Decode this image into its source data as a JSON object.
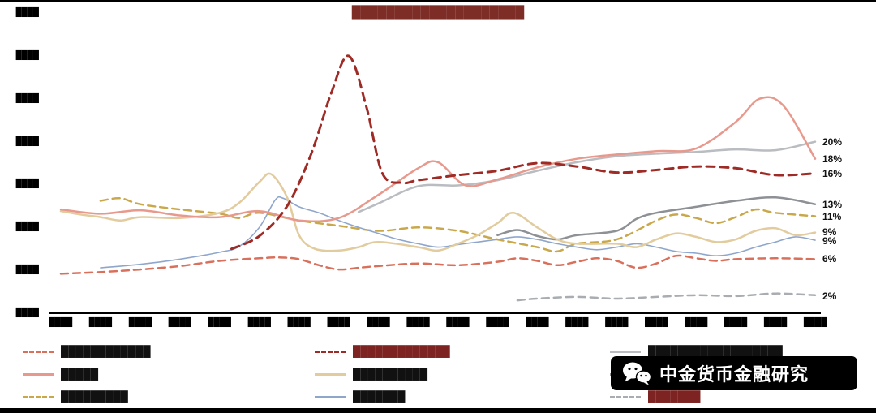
{
  "title": {
    "text": "████████████████████"
  },
  "y_axis": {
    "ticks": [
      "████",
      "████",
      "████",
      "████",
      "████",
      "████",
      "████",
      "████"
    ]
  },
  "x_axis": {
    "labels": [
      "████",
      "████",
      "████",
      "████",
      "████",
      "████",
      "████",
      "████",
      "████",
      "████",
      "████",
      "████",
      "████",
      "████",
      "████",
      "████",
      "████",
      "████",
      "████",
      "████"
    ]
  },
  "right_labels": [
    {
      "text": "20%",
      "value": 20.0
    },
    {
      "text": "18%",
      "value": 18.0
    },
    {
      "text": "16%",
      "value": 16.3
    },
    {
      "text": "13%",
      "value": 12.7
    },
    {
      "text": "11%",
      "value": 11.3
    },
    {
      "text": "9%",
      "value": 9.5
    },
    {
      "text": "9%",
      "value": 8.4
    },
    {
      "text": "6%",
      "value": 6.3
    },
    {
      "text": "2%",
      "value": 2.0
    }
  ],
  "chart_data": {
    "type": "line",
    "x_count": 20,
    "ylim": [
      0,
      35
    ],
    "grid": false,
    "legend_position": "bottom",
    "series": [
      {
        "name": "lightgray-solid",
        "color": "#b9bcc0",
        "dash": false,
        "width": 2.5,
        "points": [
          [
            7.5,
            11.8
          ],
          [
            8,
            12.8
          ],
          [
            9,
            14.8
          ],
          [
            10,
            14.9
          ],
          [
            11,
            15.5
          ],
          [
            12,
            16.6
          ],
          [
            13,
            17.6
          ],
          [
            14,
            18.3
          ],
          [
            15,
            18.6
          ],
          [
            16,
            18.8
          ],
          [
            17,
            19.1
          ],
          [
            18,
            19.0
          ],
          [
            19,
            20.0
          ]
        ]
      },
      {
        "name": "gray-solid",
        "color": "#8d9094",
        "dash": false,
        "width": 2.5,
        "points": [
          [
            11,
            9.1
          ],
          [
            11.5,
            9.7
          ],
          [
            12,
            9.0
          ],
          [
            12.5,
            8.6
          ],
          [
            13,
            9.1
          ],
          [
            14,
            9.6
          ],
          [
            14.5,
            11.0
          ],
          [
            15,
            11.7
          ],
          [
            16,
            12.4
          ],
          [
            17,
            13.1
          ],
          [
            18,
            13.5
          ],
          [
            19,
            12.7
          ]
        ]
      },
      {
        "name": "gray-dashed",
        "color": "#a9adb2",
        "dash": true,
        "width": 2.5,
        "points": [
          [
            11.5,
            1.5
          ],
          [
            12,
            1.7
          ],
          [
            13,
            1.9
          ],
          [
            14,
            1.7
          ],
          [
            15,
            1.9
          ],
          [
            16,
            2.1
          ],
          [
            17,
            2.0
          ],
          [
            18,
            2.3
          ],
          [
            19,
            2.1
          ]
        ]
      },
      {
        "name": "gold-dashed",
        "color": "#c9a84c",
        "dash": true,
        "width": 2.5,
        "points": [
          [
            1,
            13.1
          ],
          [
            1.5,
            13.4
          ],
          [
            2,
            12.7
          ],
          [
            3,
            12.1
          ],
          [
            4,
            11.6
          ],
          [
            4.5,
            11.1
          ],
          [
            5,
            11.7
          ],
          [
            6,
            10.8
          ],
          [
            7,
            10.2
          ],
          [
            8,
            9.6
          ],
          [
            9,
            10.0
          ],
          [
            10,
            9.6
          ],
          [
            11,
            8.6
          ],
          [
            12,
            7.7
          ],
          [
            12.5,
            7.2
          ],
          [
            13,
            8.1
          ],
          [
            14,
            8.6
          ],
          [
            15,
            10.8
          ],
          [
            15.5,
            11.5
          ],
          [
            16,
            11.1
          ],
          [
            16.5,
            10.5
          ],
          [
            17,
            11.2
          ],
          [
            17.5,
            12.1
          ],
          [
            18,
            11.7
          ],
          [
            19,
            11.3
          ]
        ]
      },
      {
        "name": "coral-dashed",
        "color": "#d9705c",
        "dash": true,
        "width": 2.5,
        "points": [
          [
            0,
            4.6
          ],
          [
            1,
            4.8
          ],
          [
            2,
            5.1
          ],
          [
            3,
            5.5
          ],
          [
            4,
            6.1
          ],
          [
            5,
            6.4
          ],
          [
            5.5,
            6.5
          ],
          [
            6,
            6.3
          ],
          [
            6.5,
            5.6
          ],
          [
            7,
            5.1
          ],
          [
            7.5,
            5.3
          ],
          [
            8,
            5.5
          ],
          [
            9,
            5.8
          ],
          [
            10,
            5.6
          ],
          [
            11,
            6.0
          ],
          [
            11.5,
            6.4
          ],
          [
            12,
            6.1
          ],
          [
            12.5,
            5.6
          ],
          [
            13,
            6.0
          ],
          [
            13.5,
            6.4
          ],
          [
            14,
            6.1
          ],
          [
            14.5,
            5.3
          ],
          [
            15,
            5.8
          ],
          [
            15.5,
            6.7
          ],
          [
            16,
            6.4
          ],
          [
            16.5,
            6.1
          ],
          [
            17,
            6.3
          ],
          [
            18,
            6.4
          ],
          [
            19,
            6.3
          ]
        ]
      },
      {
        "name": "blue-solid",
        "color": "#8fa6cc",
        "dash": false,
        "width": 1.6,
        "points": [
          [
            1,
            5.3
          ],
          [
            2,
            5.7
          ],
          [
            3,
            6.3
          ],
          [
            4,
            7.1
          ],
          [
            4.5,
            7.8
          ],
          [
            5,
            10.0
          ],
          [
            5.4,
            13.2
          ],
          [
            5.6,
            13.4
          ],
          [
            6,
            12.4
          ],
          [
            6.5,
            11.7
          ],
          [
            7,
            10.8
          ],
          [
            7.5,
            10.0
          ],
          [
            8,
            9.3
          ],
          [
            8.5,
            8.6
          ],
          [
            9,
            8.1
          ],
          [
            9.5,
            7.7
          ],
          [
            10,
            8.0
          ],
          [
            10.5,
            8.3
          ],
          [
            11,
            8.6
          ],
          [
            11.5,
            8.9
          ],
          [
            12,
            8.6
          ],
          [
            12.5,
            8.1
          ],
          [
            13,
            7.7
          ],
          [
            13.5,
            7.4
          ],
          [
            14,
            7.7
          ],
          [
            14.5,
            8.1
          ],
          [
            15,
            7.7
          ],
          [
            15.5,
            7.2
          ],
          [
            16,
            7.0
          ],
          [
            16.5,
            6.7
          ],
          [
            17,
            7.0
          ],
          [
            17.5,
            7.7
          ],
          [
            18,
            8.3
          ],
          [
            18.5,
            8.9
          ],
          [
            19,
            8.5
          ]
        ]
      },
      {
        "name": "tan-solid",
        "color": "#e2cc9e",
        "dash": false,
        "width": 2.5,
        "points": [
          [
            0,
            11.9
          ],
          [
            0.5,
            11.5
          ],
          [
            1,
            11.2
          ],
          [
            1.5,
            10.8
          ],
          [
            2,
            11.2
          ],
          [
            3,
            11.1
          ],
          [
            4,
            11.7
          ],
          [
            4.5,
            12.9
          ],
          [
            5,
            15.3
          ],
          [
            5.3,
            16.2
          ],
          [
            5.7,
            13.5
          ],
          [
            6,
            9.1
          ],
          [
            6.4,
            7.5
          ],
          [
            7,
            7.3
          ],
          [
            7.5,
            7.7
          ],
          [
            8,
            8.3
          ],
          [
            9,
            7.7
          ],
          [
            9.5,
            7.3
          ],
          [
            10,
            8.1
          ],
          [
            10.5,
            9.1
          ],
          [
            11,
            10.5
          ],
          [
            11.4,
            11.7
          ],
          [
            12,
            10.0
          ],
          [
            12.5,
            8.6
          ],
          [
            13,
            8.1
          ],
          [
            14,
            8.1
          ],
          [
            14.5,
            7.7
          ],
          [
            15,
            8.6
          ],
          [
            15.5,
            9.3
          ],
          [
            16,
            8.9
          ],
          [
            16.5,
            8.3
          ],
          [
            17,
            8.6
          ],
          [
            17.5,
            9.6
          ],
          [
            18,
            9.9
          ],
          [
            18.5,
            9.1
          ],
          [
            19,
            9.4
          ]
        ]
      },
      {
        "name": "salmon-solid",
        "color": "#e8998d",
        "dash": false,
        "width": 2.5,
        "points": [
          [
            0,
            12.1
          ],
          [
            1,
            11.6
          ],
          [
            2,
            12.0
          ],
          [
            3,
            11.4
          ],
          [
            4,
            11.2
          ],
          [
            5,
            11.9
          ],
          [
            6,
            10.8
          ],
          [
            7,
            11.1
          ],
          [
            8,
            13.8
          ],
          [
            9,
            16.9
          ],
          [
            9.5,
            17.6
          ],
          [
            10.2,
            14.9
          ],
          [
            11,
            15.6
          ],
          [
            12,
            17.0
          ],
          [
            13,
            18.0
          ],
          [
            14,
            18.5
          ],
          [
            15,
            18.9
          ],
          [
            16,
            19.2
          ],
          [
            17,
            22.3
          ],
          [
            17.6,
            25.0
          ],
          [
            18.2,
            24.2
          ],
          [
            19,
            18.0
          ]
        ]
      },
      {
        "name": "darkred-dashed",
        "color": "#9e2b25",
        "dash": true,
        "width": 3,
        "points": [
          [
            4.3,
            7.5
          ],
          [
            5,
            9.0
          ],
          [
            5.7,
            12.5
          ],
          [
            6.3,
            18.5
          ],
          [
            6.8,
            25.5
          ],
          [
            7.25,
            30.0
          ],
          [
            7.7,
            24.0
          ],
          [
            8.1,
            16.3
          ],
          [
            8.6,
            15.2
          ],
          [
            9,
            15.5
          ],
          [
            10,
            16.1
          ],
          [
            11,
            16.6
          ],
          [
            12,
            17.5
          ],
          [
            13,
            17.1
          ],
          [
            14,
            16.4
          ],
          [
            15,
            16.7
          ],
          [
            16,
            17.1
          ],
          [
            17,
            16.9
          ],
          [
            18,
            16.1
          ],
          [
            19,
            16.3
          ]
        ]
      }
    ]
  },
  "legend": {
    "columns": [
      {
        "items": [
          {
            "series": "coral-dashed",
            "swatch": "dashed",
            "color": "#d9705c",
            "thickness": 3,
            "label": "████████████",
            "label_color": "#111111"
          },
          {
            "series": "salmon-solid",
            "swatch": "solid",
            "color": "#e8998d",
            "thickness": 3,
            "label": "█████",
            "label_color": "#111111"
          },
          {
            "series": "gold-dashed",
            "swatch": "dashed",
            "color": "#c9a84c",
            "thickness": 3,
            "label": "█████████",
            "label_color": "#111111"
          }
        ]
      },
      {
        "items": [
          {
            "series": "darkred-dashed",
            "swatch": "dashed",
            "color": "#9e2b25",
            "thickness": 3,
            "label": "█████████████",
            "label_color": "#7d2321"
          },
          {
            "series": "tan-solid",
            "swatch": "solid",
            "color": "#e2cc9e",
            "thickness": 3,
            "label": "██████████",
            "label_color": "#111111"
          },
          {
            "series": "blue-solid",
            "swatch": "solid",
            "color": "#8fa6cc",
            "thickness": 2,
            "label": "███████",
            "label_color": "#111111"
          }
        ]
      },
      {
        "items": [
          {
            "series": "lightgray-solid",
            "swatch": "solid",
            "color": "#b9bcc0",
            "thickness": 3,
            "label": "██████████████████",
            "label_color": "#111111"
          },
          {
            "series": "gray-solid",
            "swatch": "solid",
            "color": "#8d9094",
            "thickness": 3,
            "label": "███████████",
            "label_color": "#111111"
          },
          {
            "series": "gray-dashed",
            "swatch": "dashed",
            "color": "#a9adb2",
            "thickness": 3,
            "label": "███████",
            "label_color": "#7d2321"
          }
        ]
      }
    ]
  },
  "watermark": {
    "text": "中金货币金融研究",
    "bg": "#000000",
    "color": "#ffffff"
  }
}
